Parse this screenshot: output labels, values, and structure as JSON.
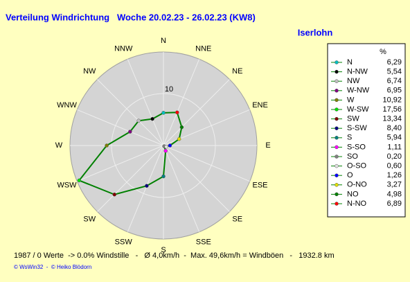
{
  "chart_data": {
    "type": "radar",
    "title": "Verteilung Windrichtung   Woche 20.02.23 - 26.02.23 (KW8)",
    "location": "Iserlohn",
    "directions": [
      "N",
      "NNE",
      "NE",
      "ENE",
      "E",
      "ESE",
      "SE",
      "SSE",
      "S",
      "SSW",
      "SW",
      "WSW",
      "W",
      "WNW",
      "NW",
      "NNW"
    ],
    "legend_title": "%",
    "names": [
      "N",
      "N-NW",
      "NW",
      "W-NW",
      "W",
      "W-SW",
      "SW",
      "S-SW",
      "S",
      "S-SO",
      "SO",
      "O-SO",
      "O",
      "O-NO",
      "NO",
      "N-NO"
    ],
    "values": [
      6.29,
      5.54,
      6.74,
      6.95,
      10.92,
      17.56,
      13.34,
      8.4,
      5.94,
      1.11,
      0.2,
      0.6,
      1.26,
      3.27,
      4.98,
      6.89
    ],
    "value_labels": [
      "6,29",
      "5,54",
      "6,74",
      "6,95",
      "10,92",
      "17,56",
      "13,34",
      "8,40",
      "5,94",
      "1,11",
      "0,20",
      "0,60",
      "1,26",
      "3,27",
      "4,98",
      "6,89"
    ],
    "colors": [
      "#00c0c0",
      "#000000",
      "#c0c0c0",
      "#800080",
      "#808000",
      "#00e000",
      "#800000",
      "#000080",
      "#008080",
      "#ff00ff",
      "#808080",
      "#e0e0e0",
      "#0000ff",
      "#e0e000",
      "#008000",
      "#ff0000"
    ],
    "line_color": "#008000",
    "rlim": [
      0,
      18
    ],
    "rticks": [
      10
    ],
    "footer": "1987 / 0 Werte  -> 0.0% Windstille   -   Ø 4,0km/h  -  Max. 49,6km/h = Windböen   -   1932.8 km",
    "credits": "© WsWin32  -  © Heiko Blödorn"
  }
}
